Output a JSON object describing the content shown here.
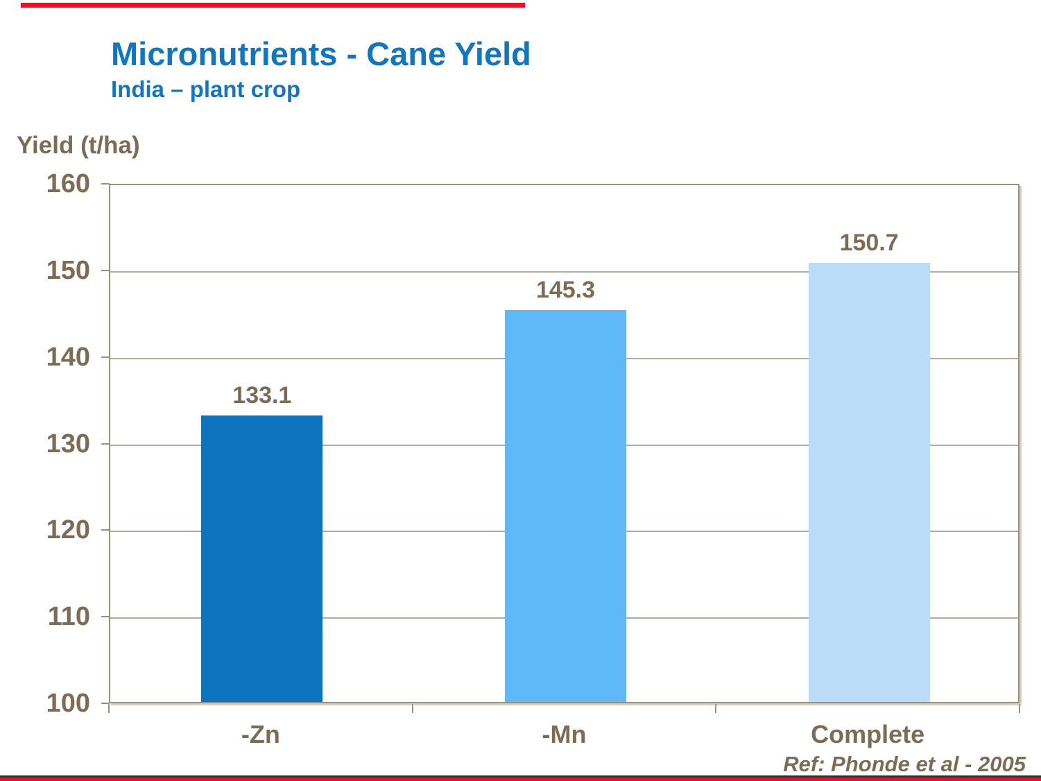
{
  "slide": {
    "title": "Micronutrients - Cane Yield",
    "subtitle": "India – plant crop",
    "y_axis_title": "Yield (t/ha)",
    "reference": "Ref: Phonde et al - 2005"
  },
  "chart_data": {
    "type": "bar",
    "title": "Micronutrients - Cane Yield",
    "subtitle": "India – plant crop",
    "ylabel": "Yield (t/ha)",
    "xlabel": "",
    "categories": [
      "-Zn",
      "-Mn",
      "Complete"
    ],
    "values": [
      133.1,
      145.3,
      150.7
    ],
    "data_labels": [
      "133.1",
      "145.3",
      "150.7"
    ],
    "ylim": [
      100,
      160
    ],
    "yticks": [
      100,
      110,
      120,
      130,
      140,
      150,
      160
    ],
    "grid": true,
    "legend": false,
    "bar_colors": [
      "#0E73BE",
      "#5FB9F8",
      "#BADCF9"
    ]
  },
  "colors": {
    "accent_red": "#E8112D",
    "title_blue": "#1375BD",
    "text_brown": "#7D6C55",
    "axis_line": "#9A8E7E",
    "gridline": "#B5AB9C",
    "footer_rule": "#33302C"
  }
}
